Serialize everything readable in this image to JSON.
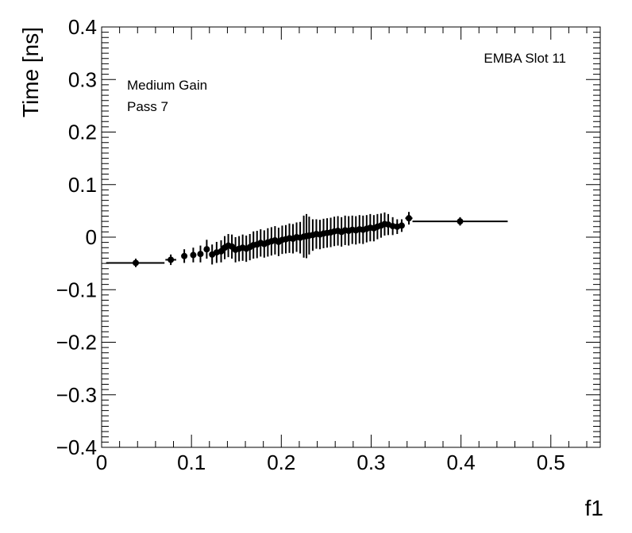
{
  "chart_data": {
    "type": "scatter",
    "xlabel": "f1",
    "ylabel": "Time [ns]",
    "xlim": [
      0,
      0.555
    ],
    "ylim": [
      -0.4,
      0.4
    ],
    "x_ticks": [
      0,
      0.1,
      0.2,
      0.3,
      0.4,
      0.5
    ],
    "x_tick_labels": [
      "0",
      "0.1",
      "0.2",
      "0.3",
      "0.4",
      "0.5"
    ],
    "y_ticks": [
      -0.4,
      -0.3,
      -0.2,
      -0.1,
      0,
      0.1,
      0.2,
      0.3,
      0.4
    ],
    "y_tick_labels": [
      "−0.4",
      "−0.3",
      "−0.2",
      "−0.1",
      "0",
      "0.1",
      "0.2",
      "0.3",
      "0.4"
    ],
    "grid": false,
    "annotations": {
      "top_right": "EMBA Slot 11",
      "gain": "Medium Gain",
      "pass": "Pass 7"
    },
    "marker_color": "#000000",
    "series": [
      {
        "points": [
          {
            "x": 0.038,
            "y": -0.049,
            "xerr": [
              0.033,
              0.032
            ],
            "yerr": 0.008
          },
          {
            "x": 0.077,
            "y": -0.043,
            "xerr": [
              0.006,
              0.006
            ],
            "yerr": 0.01
          },
          {
            "x": 0.092,
            "y": -0.036,
            "xerr": [
              0.003,
              0.003
            ],
            "yerr": 0.013
          },
          {
            "x": 0.102,
            "y": -0.034,
            "xerr": [
              0.002,
              0.002
            ],
            "yerr": 0.014
          },
          {
            "x": 0.11,
            "y": -0.032,
            "xerr": [
              0.002,
              0.002
            ],
            "yerr": 0.016
          },
          {
            "x": 0.117,
            "y": -0.023,
            "xerr": [
              0.001,
              0.001
            ],
            "yerr": 0.018
          },
          {
            "x": 0.123,
            "y": -0.033,
            "xerr": [
              0.001,
              0.001
            ],
            "yerr": 0.019
          },
          {
            "x": 0.128,
            "y": -0.029,
            "xerr": [
              0.001,
              0.001
            ],
            "yerr": 0.02
          },
          {
            "x": 0.133,
            "y": -0.027,
            "xerr": [
              0.001,
              0.001
            ],
            "yerr": 0.021
          },
          {
            "x": 0.137,
            "y": -0.02,
            "xerr": [
              0.001,
              0.001
            ],
            "yerr": 0.022
          },
          {
            "x": 0.141,
            "y": -0.016,
            "xerr": [
              0.001,
              0.001
            ],
            "yerr": 0.022
          },
          {
            "x": 0.145,
            "y": -0.018,
            "xerr": [
              0.001,
              0.001
            ],
            "yerr": 0.023
          },
          {
            "x": 0.149,
            "y": -0.024,
            "xerr": [
              0.001,
              0.001
            ],
            "yerr": 0.024
          },
          {
            "x": 0.153,
            "y": -0.022,
            "xerr": [
              0.001,
              0.001
            ],
            "yerr": 0.024
          },
          {
            "x": 0.157,
            "y": -0.02,
            "xerr": [
              0.001,
              0.001
            ],
            "yerr": 0.025
          },
          {
            "x": 0.161,
            "y": -0.022,
            "xerr": [
              0.001,
              0.001
            ],
            "yerr": 0.025
          },
          {
            "x": 0.165,
            "y": -0.019,
            "xerr": [
              0.001,
              0.001
            ],
            "yerr": 0.025
          },
          {
            "x": 0.169,
            "y": -0.015,
            "xerr": [
              0.001,
              0.001
            ],
            "yerr": 0.026
          },
          {
            "x": 0.173,
            "y": -0.014,
            "xerr": [
              0.001,
              0.001
            ],
            "yerr": 0.026
          },
          {
            "x": 0.177,
            "y": -0.011,
            "xerr": [
              0.001,
              0.001
            ],
            "yerr": 0.026
          },
          {
            "x": 0.181,
            "y": -0.013,
            "xerr": [
              0.001,
              0.001
            ],
            "yerr": 0.026
          },
          {
            "x": 0.185,
            "y": -0.01,
            "xerr": [
              0.001,
              0.001
            ],
            "yerr": 0.027
          },
          {
            "x": 0.189,
            "y": -0.008,
            "xerr": [
              0.001,
              0.001
            ],
            "yerr": 0.027
          },
          {
            "x": 0.193,
            "y": -0.006,
            "xerr": [
              0.001,
              0.001
            ],
            "yerr": 0.027
          },
          {
            "x": 0.197,
            "y": -0.009,
            "xerr": [
              0.001,
              0.001
            ],
            "yerr": 0.027
          },
          {
            "x": 0.201,
            "y": -0.005,
            "xerr": [
              0.001,
              0.001
            ],
            "yerr": 0.027
          },
          {
            "x": 0.205,
            "y": -0.004,
            "xerr": [
              0.001,
              0.001
            ],
            "yerr": 0.027
          },
          {
            "x": 0.209,
            "y": -0.002,
            "xerr": [
              0.001,
              0.001
            ],
            "yerr": 0.028
          },
          {
            "x": 0.213,
            "y": -0.003,
            "xerr": [
              0.001,
              0.001
            ],
            "yerr": 0.028
          },
          {
            "x": 0.217,
            "y": 0.0,
            "xerr": [
              0.001,
              0.001
            ],
            "yerr": 0.028
          },
          {
            "x": 0.221,
            "y": -0.001,
            "xerr": [
              0.001,
              0.001
            ],
            "yerr": 0.03
          },
          {
            "x": 0.225,
            "y": 0.001,
            "xerr": [
              0.001,
              0.001
            ],
            "yerr": 0.04
          },
          {
            "x": 0.228,
            "y": 0.002,
            "xerr": [
              0.001,
              0.001
            ],
            "yerr": 0.042
          },
          {
            "x": 0.231,
            "y": 0.003,
            "xerr": [
              0.001,
              0.001
            ],
            "yerr": 0.036
          },
          {
            "x": 0.235,
            "y": 0.004,
            "xerr": [
              0.001,
              0.001
            ],
            "yerr": 0.03
          },
          {
            "x": 0.239,
            "y": 0.006,
            "xerr": [
              0.001,
              0.001
            ],
            "yerr": 0.028
          },
          {
            "x": 0.243,
            "y": 0.005,
            "xerr": [
              0.001,
              0.001
            ],
            "yerr": 0.028
          },
          {
            "x": 0.247,
            "y": 0.007,
            "xerr": [
              0.001,
              0.001
            ],
            "yerr": 0.028
          },
          {
            "x": 0.251,
            "y": 0.008,
            "xerr": [
              0.001,
              0.001
            ],
            "yerr": 0.028
          },
          {
            "x": 0.255,
            "y": 0.009,
            "xerr": [
              0.001,
              0.001
            ],
            "yerr": 0.028
          },
          {
            "x": 0.259,
            "y": 0.011,
            "xerr": [
              0.001,
              0.001
            ],
            "yerr": 0.028
          },
          {
            "x": 0.263,
            "y": 0.012,
            "xerr": [
              0.001,
              0.001
            ],
            "yerr": 0.028
          },
          {
            "x": 0.267,
            "y": 0.01,
            "xerr": [
              0.001,
              0.001
            ],
            "yerr": 0.028
          },
          {
            "x": 0.271,
            "y": 0.013,
            "xerr": [
              0.001,
              0.001
            ],
            "yerr": 0.028
          },
          {
            "x": 0.275,
            "y": 0.012,
            "xerr": [
              0.001,
              0.001
            ],
            "yerr": 0.028
          },
          {
            "x": 0.279,
            "y": 0.014,
            "xerr": [
              0.001,
              0.001
            ],
            "yerr": 0.027
          },
          {
            "x": 0.283,
            "y": 0.013,
            "xerr": [
              0.001,
              0.001
            ],
            "yerr": 0.027
          },
          {
            "x": 0.287,
            "y": 0.015,
            "xerr": [
              0.001,
              0.001
            ],
            "yerr": 0.027
          },
          {
            "x": 0.291,
            "y": 0.014,
            "xerr": [
              0.001,
              0.001
            ],
            "yerr": 0.027
          },
          {
            "x": 0.295,
            "y": 0.016,
            "xerr": [
              0.001,
              0.001
            ],
            "yerr": 0.026
          },
          {
            "x": 0.299,
            "y": 0.018,
            "xerr": [
              0.001,
              0.001
            ],
            "yerr": 0.026
          },
          {
            "x": 0.303,
            "y": 0.017,
            "xerr": [
              0.001,
              0.001
            ],
            "yerr": 0.025
          },
          {
            "x": 0.307,
            "y": 0.02,
            "xerr": [
              0.001,
              0.001
            ],
            "yerr": 0.024
          },
          {
            "x": 0.311,
            "y": 0.022,
            "xerr": [
              0.001,
              0.001
            ],
            "yerr": 0.023
          },
          {
            "x": 0.315,
            "y": 0.025,
            "xerr": [
              0.001,
              0.001
            ],
            "yerr": 0.022
          },
          {
            "x": 0.319,
            "y": 0.024,
            "xerr": [
              0.001,
              0.001
            ],
            "yerr": 0.02
          },
          {
            "x": 0.324,
            "y": 0.021,
            "xerr": [
              0.002,
              0.002
            ],
            "yerr": 0.017
          },
          {
            "x": 0.329,
            "y": 0.02,
            "xerr": [
              0.002,
              0.002
            ],
            "yerr": 0.014
          },
          {
            "x": 0.334,
            "y": 0.022,
            "xerr": [
              0.002,
              0.002
            ],
            "yerr": 0.012
          },
          {
            "x": 0.342,
            "y": 0.036,
            "xerr": [
              0.004,
              0.004
            ],
            "yerr": 0.012
          },
          {
            "x": 0.399,
            "y": 0.03,
            "xerr": [
              0.053,
              0.053
            ],
            "yerr": 0.008
          }
        ]
      }
    ]
  }
}
